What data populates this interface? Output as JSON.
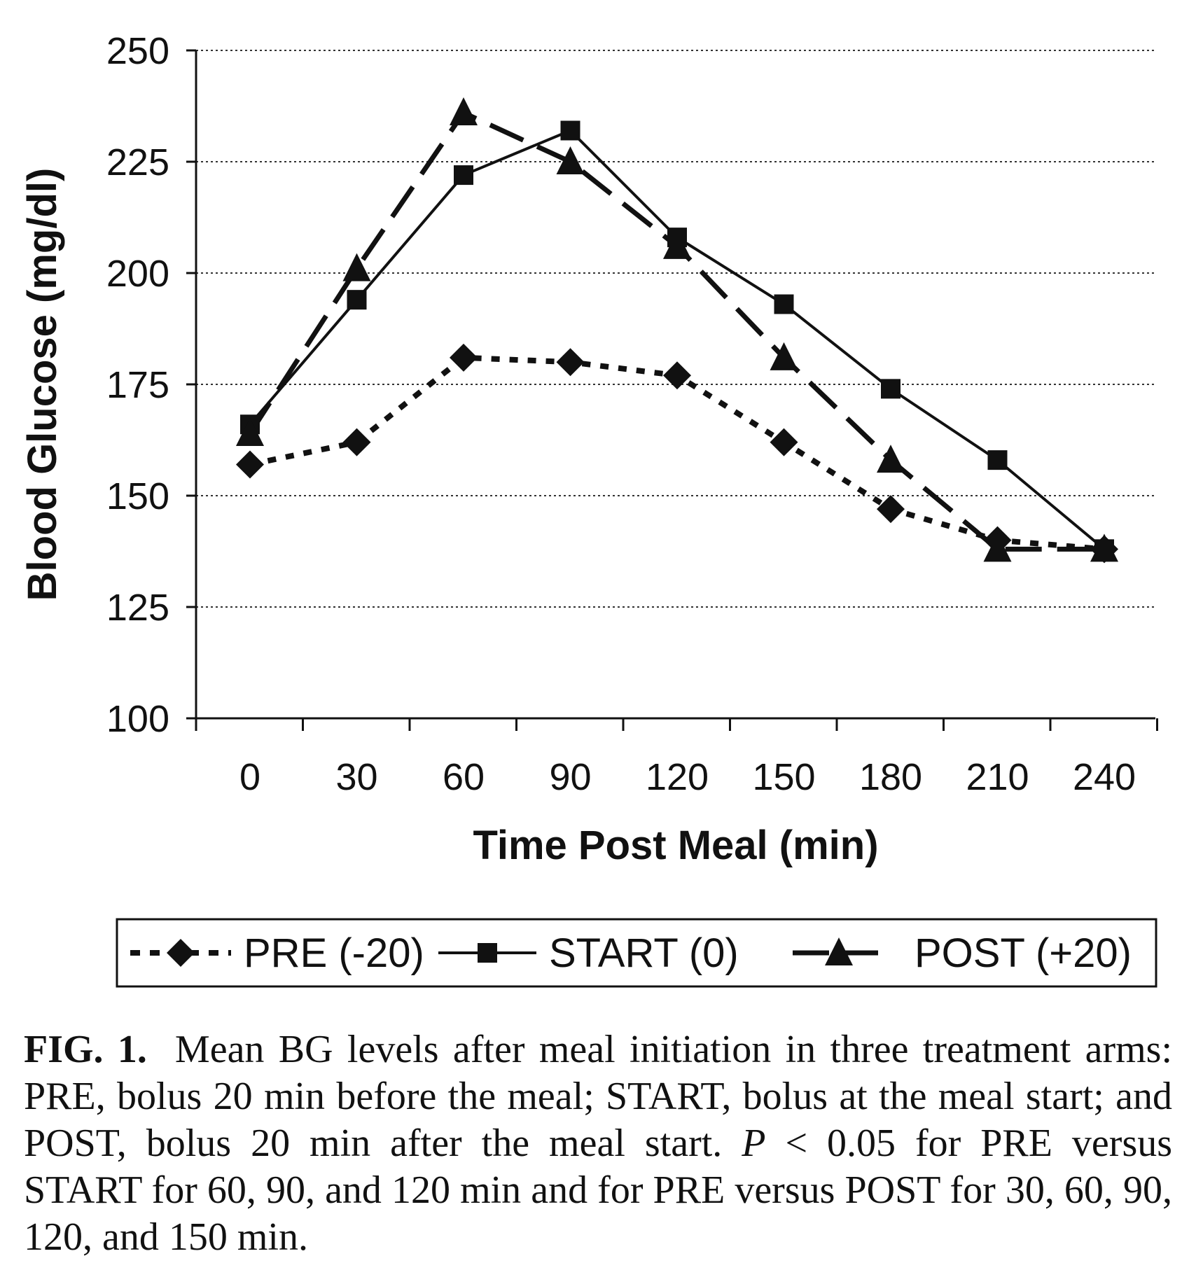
{
  "chart_data": {
    "type": "line",
    "x": [
      0,
      30,
      60,
      90,
      120,
      150,
      180,
      210,
      240
    ],
    "xlabel": "Time Post Meal (min)",
    "ylabel": "Blood Glucose (mg/dl)",
    "ylim": [
      100,
      250
    ],
    "yticks": [
      100,
      125,
      150,
      175,
      200,
      225,
      250
    ],
    "xtick_labels": [
      "0",
      "30",
      "60",
      "90",
      "120",
      "150",
      "180",
      "210",
      "240"
    ],
    "ytick_labels": [
      "100",
      "125",
      "150",
      "175",
      "200",
      "225",
      "250"
    ],
    "grid": "horizontal dotted",
    "legend_position": "bottom",
    "series": [
      {
        "name": "PRE (-20)",
        "style": "dotted",
        "marker": "diamond",
        "values": [
          157,
          162,
          181,
          180,
          177,
          162,
          147,
          140,
          138
        ]
      },
      {
        "name": "START (0)",
        "style": "solid",
        "marker": "square",
        "values": [
          166,
          194,
          222,
          232,
          208,
          193,
          174,
          158,
          138
        ]
      },
      {
        "name": "POST (+20)",
        "style": "dashed",
        "marker": "triangle",
        "values": [
          164,
          201,
          236,
          225,
          206,
          181,
          158,
          138,
          138
        ]
      }
    ]
  },
  "caption": {
    "label": "FIG. 1.",
    "text_before_p": "Mean BG levels after meal initiation in three treatment arms: PRE, bolus 20 min before the meal; START, bolus at the meal start; and POST, bolus 20 min after the meal start.",
    "p_symbol": "P",
    "text_after_p": "< 0.05 for PRE versus START for 60, 90, and 120 min and for PRE versus POST for 30, 60, 90, 120, and 150 min."
  },
  "colors": {
    "ink": "#111111",
    "grid": "#333333"
  }
}
